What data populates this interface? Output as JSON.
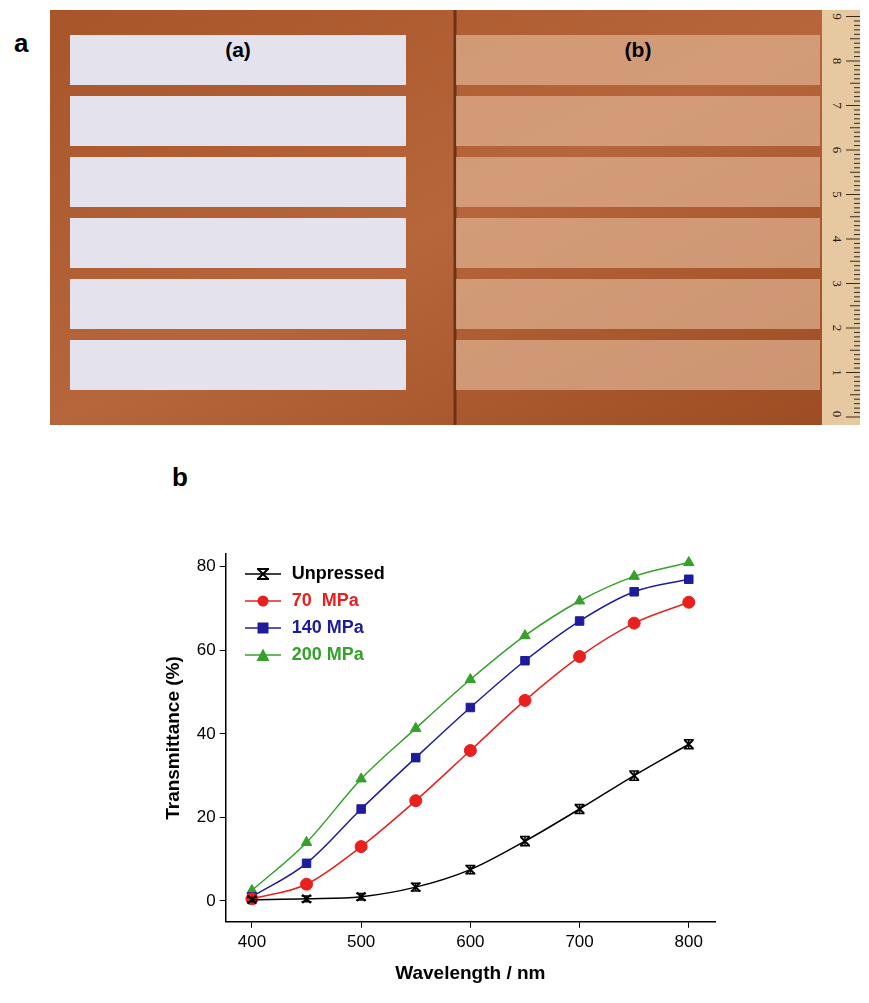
{
  "photo": {
    "panel_label": "a",
    "sample_labels": [
      "(a)",
      "(b)"
    ],
    "ruler_labels": [
      "0",
      "1",
      "2",
      "3",
      "4",
      "5",
      "6",
      "7",
      "8",
      "9"
    ]
  },
  "chart_data": {
    "panel_label": "b",
    "type": "line",
    "x_label": "Wavelength / nm",
    "y_label": "Transmittance (%)",
    "x": [
      400,
      450,
      500,
      550,
      600,
      650,
      700,
      750,
      800
    ],
    "xlim": [
      376,
      824
    ],
    "xticks": [
      400,
      500,
      600,
      700,
      800
    ],
    "ylim": [
      -5,
      83
    ],
    "yticks": [
      0,
      20,
      40,
      60,
      80
    ],
    "grid": false,
    "legend": "top-left",
    "series": [
      {
        "name": "Unpressed",
        "color": "#000000",
        "marker": "x",
        "line_style": "solid",
        "values": [
          0.3,
          0.5,
          1,
          3.3,
          7.5,
          14.3,
          22,
          30,
          37.5
        ],
        "errors": [
          0.5,
          0.7,
          0.8,
          0.9,
          1,
          1.1,
          1.1,
          1.1,
          1.1
        ]
      },
      {
        "name": "70  MPa",
        "color": "#e8211f",
        "marker": "circle",
        "line_style": "solid",
        "values": [
          0.5,
          4,
          13,
          24,
          36,
          48,
          58.5,
          66.5,
          71.5
        ]
      },
      {
        "name": "140 MPa",
        "color": "#1c1c9c",
        "marker": "square",
        "line_style": "solid",
        "values": [
          1,
          9,
          22,
          34.3,
          46.3,
          57.5,
          67,
          74,
          77
        ]
      },
      {
        "name": "200 MPa",
        "color": "#35a02a",
        "marker": "triangle",
        "line_style": "solid",
        "values": [
          2.5,
          14,
          29.2,
          41.3,
          53,
          63.5,
          71.8,
          77.7,
          81
        ]
      }
    ]
  }
}
